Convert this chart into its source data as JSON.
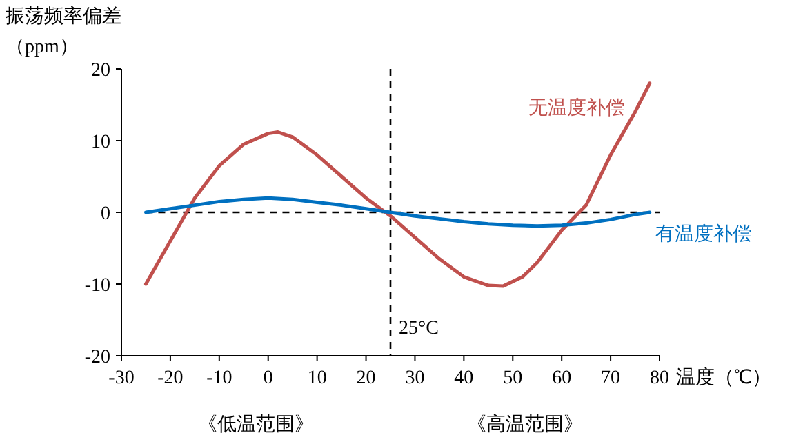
{
  "chart_data": {
    "type": "line",
    "ylabel": "振荡频率偏差（ppm）",
    "xlabel": "温度（℃）",
    "xlim": [
      -30,
      80
    ],
    "xticks": [
      -30,
      -20,
      -10,
      0,
      10,
      20,
      30,
      40,
      50,
      60,
      70,
      80
    ],
    "ylim": [
      -20,
      20
    ],
    "yticks": [
      -20,
      -10,
      0,
      10,
      20
    ],
    "grid": false,
    "marker": "none",
    "line_style": "solid",
    "series": [
      {
        "name": "无温度补偿",
        "color": "#c0504d",
        "x": [
          -25,
          -20,
          -15,
          -10,
          -5,
          0,
          2,
          5,
          10,
          15,
          20,
          25,
          30,
          35,
          40,
          45,
          48,
          52,
          55,
          60,
          65,
          70,
          75,
          78
        ],
        "values": [
          -10,
          -4,
          2,
          6.5,
          9.5,
          11,
          11.2,
          10.5,
          8,
          5,
          2,
          -0.5,
          -3.5,
          -6.5,
          -9,
          -10.2,
          -10.3,
          -9,
          -7,
          -2.5,
          1,
          8,
          14,
          18
        ]
      },
      {
        "name": "有温度补偿",
        "color": "#0070c0",
        "x": [
          -25,
          -20,
          -15,
          -10,
          -5,
          0,
          5,
          10,
          15,
          20,
          25,
          30,
          35,
          40,
          45,
          50,
          55,
          60,
          65,
          70,
          75,
          78
        ],
        "values": [
          0,
          0.5,
          1,
          1.5,
          1.8,
          2,
          1.8,
          1.4,
          1,
          0.5,
          0,
          -0.5,
          -0.9,
          -1.3,
          -1.6,
          -1.8,
          -1.9,
          -1.8,
          -1.5,
          -1,
          -0.3,
          0
        ]
      }
    ],
    "ref_lines": [
      {
        "axis": "y",
        "value": 0,
        "label": null,
        "color": "#000000",
        "line_style": "dashed"
      },
      {
        "axis": "x",
        "value": 25,
        "label": "25°C",
        "color": "#000000",
        "line_style": "dashed"
      }
    ],
    "annotations": [
      "《低温范围》",
      "《高温范围》"
    ]
  }
}
